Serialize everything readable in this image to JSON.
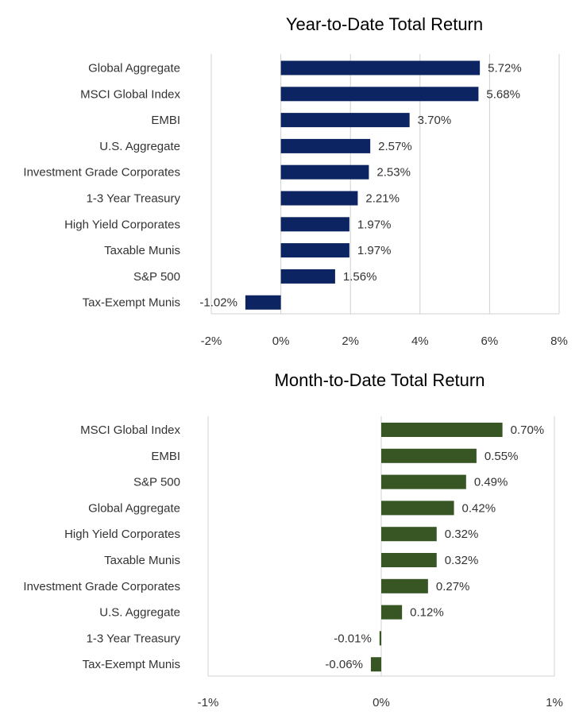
{
  "chart_data": [
    {
      "type": "bar",
      "orientation": "horizontal",
      "title": "Year-to-Date Total Return",
      "categories": [
        "Global Aggregate",
        "MSCI Global Index",
        "EMBI",
        "U.S. Aggregate",
        "Investment Grade Corporates",
        "1-3 Year Treasury",
        "High Yield Corporates",
        "Taxable Munis",
        "S&P 500",
        "Tax-Exempt Munis"
      ],
      "values": [
        5.72,
        5.68,
        3.7,
        2.57,
        2.53,
        2.21,
        1.97,
        1.97,
        1.56,
        -1.02
      ],
      "value_labels": [
        "5.72%",
        "5.68%",
        "3.70%",
        "2.57%",
        "2.53%",
        "2.21%",
        "1.97%",
        "1.97%",
        "1.56%",
        "-1.02%"
      ],
      "xlim": [
        -2,
        8
      ],
      "xticks": [
        -2,
        0,
        2,
        4,
        6,
        8
      ],
      "xtick_labels": [
        "-2%",
        "0%",
        "2%",
        "4%",
        "6%",
        "8%"
      ],
      "color": "#0c2461",
      "grid": true,
      "legend": "none"
    },
    {
      "type": "bar",
      "orientation": "horizontal",
      "title": "Month-to-Date Total Return",
      "categories": [
        "MSCI Global Index",
        "EMBI",
        "S&P 500",
        "Global Aggregate",
        "High Yield Corporates",
        "Taxable Munis",
        "Investment Grade Corporates",
        "U.S. Aggregate",
        "1-3 Year Treasury",
        "Tax-Exempt Munis"
      ],
      "values": [
        0.7,
        0.55,
        0.49,
        0.42,
        0.32,
        0.32,
        0.27,
        0.12,
        -0.01,
        -0.06
      ],
      "value_labels": [
        "0.70%",
        "0.55%",
        "0.49%",
        "0.42%",
        "0.32%",
        "0.32%",
        "0.27%",
        "0.12%",
        "-0.01%",
        "-0.06%"
      ],
      "xlim": [
        -1,
        1
      ],
      "xticks": [
        -1,
        0,
        1
      ],
      "xtick_labels": [
        "-1%",
        "0%",
        "1%"
      ],
      "color": "#375623",
      "grid": true,
      "legend": "none"
    }
  ]
}
